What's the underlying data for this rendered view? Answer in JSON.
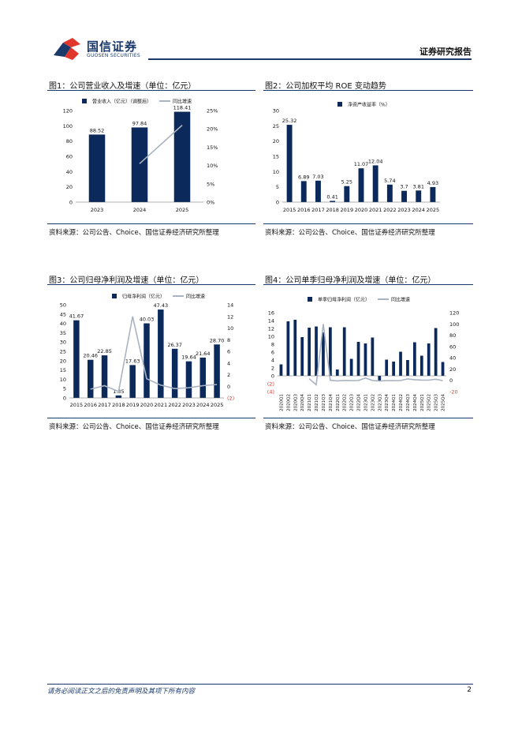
{
  "header": {
    "logo_cn": "国信证券",
    "logo_en": "GUOSEN SECURITIES",
    "doc_type": "证券研究报告",
    "brand_color": "#1b3a6b",
    "accent_color": "#e0362c"
  },
  "figures": [
    {
      "title": "图1：公司营业收入及增速（单位：亿元）",
      "source": "资料来源：公司公告、Choice、国信证券经济研究所整理"
    },
    {
      "title": "图2：公司加权平均 ROE 变动趋势",
      "source": "资料来源：公司公告、Choice、国信证券经济研究所整理"
    },
    {
      "title": "图3：公司归母净利润及增速（单位：亿元）",
      "source": "资料来源：公司公告、Choice、国信证券经济研究所整理"
    },
    {
      "title": "图4：公司单季归母净利润及增速（单位：亿元）",
      "source": "资料来源：公司公告、Choice、国信证券经济研究所整理"
    }
  ],
  "chart_data": [
    {
      "type": "bar",
      "categories": [
        "2023",
        "2024",
        "2025"
      ],
      "series": [
        {
          "name": "营业收入（亿元）（调整后）",
          "type": "bar",
          "axis": "left",
          "values": [
            88.52,
            97.84,
            118.41
          ],
          "labels": [
            "88.52",
            "97.84",
            "118.41"
          ],
          "color": "#0b2a5b"
        },
        {
          "name": "同比增速",
          "type": "line",
          "axis": "right",
          "values": [
            null,
            10.5,
            21.0
          ],
          "color": "#a9b3c1"
        }
      ],
      "ylim": [
        0,
        120
      ],
      "yticks": [
        "0",
        "20",
        "40",
        "60",
        "80",
        "100",
        "120"
      ],
      "y2lim": [
        0,
        25
      ],
      "y2ticks": [
        "0%",
        "5%",
        "10%",
        "15%",
        "20%",
        "25%"
      ],
      "legend": "top"
    },
    {
      "type": "bar",
      "categories": [
        "2015",
        "2016",
        "2017",
        "2018",
        "2019",
        "2020",
        "2021",
        "2022",
        "2023",
        "2024",
        "2025"
      ],
      "series": [
        {
          "name": "净资产收益率（%）",
          "values": [
            25.32,
            6.89,
            7.03,
            0.41,
            5.25,
            11.07,
            12.04,
            5.74,
            3.7,
            3.81,
            4.93
          ],
          "labels": [
            "25.32",
            "6.89",
            "7.03",
            "0.41",
            "5.25",
            "11.07",
            "12.04",
            "5.74",
            "3.7",
            "3.81",
            "4.93"
          ],
          "color": "#0b2a5b"
        }
      ],
      "ylim": [
        0,
        30
      ],
      "yticks": [
        "0",
        "5",
        "10",
        "15",
        "20",
        "25",
        "30"
      ],
      "legend": "top-left"
    },
    {
      "type": "bar",
      "categories": [
        "2015",
        "2016",
        "2017",
        "2018",
        "2019",
        "2020",
        "2021",
        "2022",
        "2023",
        "2024",
        "2025"
      ],
      "series": [
        {
          "name": "归母净利润（亿元）",
          "type": "bar",
          "axis": "left",
          "values": [
            41.67,
            20.46,
            22.85,
            1.35,
            17.63,
            40.03,
            47.43,
            26.37,
            19.64,
            21.64,
            28.7
          ],
          "labels": [
            "41.67",
            "20.46",
            "22.85",
            "1.35",
            "17.63",
            "40.03",
            "47.43",
            "26.37",
            "19.64",
            "21.64",
            "28.70"
          ],
          "color": "#0b2a5b"
        },
        {
          "name": "同比增速",
          "type": "line",
          "axis": "right",
          "values": [
            null,
            -0.5,
            0.1,
            -0.9,
            12.0,
            1.3,
            0.2,
            -0.4,
            -0.25,
            0.1,
            0.3
          ],
          "color": "#a9b3c1"
        }
      ],
      "ylim": [
        0,
        50
      ],
      "yticks": [
        "0",
        "5",
        "10",
        "15",
        "20",
        "25",
        "30",
        "35",
        "40",
        "45",
        "50"
      ],
      "y2lim": [
        -2,
        14
      ],
      "y2ticks": [
        "(2)",
        "0",
        "2",
        "4",
        "6",
        "8",
        "10",
        "12",
        "14"
      ],
      "negative_tick_color": "#e0362c",
      "legend": "top"
    },
    {
      "type": "bar",
      "categories": [
        "2020Q1",
        "2020Q2",
        "2020Q3",
        "2020Q4",
        "2021Q1",
        "2021Q2",
        "2021Q3",
        "2021Q4",
        "2022Q1",
        "2022Q2",
        "2022Q3",
        "2022Q4",
        "2023Q1",
        "2023Q2",
        "2023Q3",
        "2023Q4",
        "2024Q1",
        "2024Q2",
        "2024Q3",
        "2024Q4",
        "2025Q1",
        "2025Q2",
        "2025Q3",
        "2025Q4"
      ],
      "series": [
        {
          "name": "单季归母净利润（亿元）",
          "type": "bar",
          "axis": "left",
          "values": [
            2.9,
            13.8,
            14.2,
            9.8,
            12.2,
            12.5,
            11.0,
            12.3,
            1.6,
            12.3,
            4.3,
            8.6,
            8.2,
            9.7,
            -1.2,
            4.1,
            3.6,
            6.1,
            4.0,
            8.5,
            5.1,
            8.2,
            12.1,
            3.5
          ],
          "color": "#0b2a5b"
        },
        {
          "name": "同比增速",
          "type": "line",
          "axis": "right",
          "values": [
            null,
            null,
            null,
            null,
            3.0,
            -8.0,
            100.0,
            0.2,
            -0.9,
            -0.1,
            -0.6,
            -0.3,
            4.1,
            -0.2,
            -1.3,
            -0.5,
            -0.6,
            -0.4,
            2.5,
            1.1,
            0.4,
            0.3,
            2.0,
            -0.6
          ],
          "color": "#a9b3c1"
        }
      ],
      "ylim": [
        -4,
        16
      ],
      "yticks": [
        "(4)",
        "(2)",
        "0",
        "2",
        "4",
        "6",
        "8",
        "10",
        "12",
        "14",
        "16"
      ],
      "y2lim": [
        -20,
        120
      ],
      "y2ticks": [
        "-20",
        "0",
        "20",
        "40",
        "60",
        "80",
        "100",
        "120"
      ],
      "negative_tick_color": "#e0362c",
      "legend": "top"
    }
  ],
  "footer": {
    "disclaimer": "请务必阅读正文之后的免责声明及其项下所有内容",
    "page": "2"
  }
}
